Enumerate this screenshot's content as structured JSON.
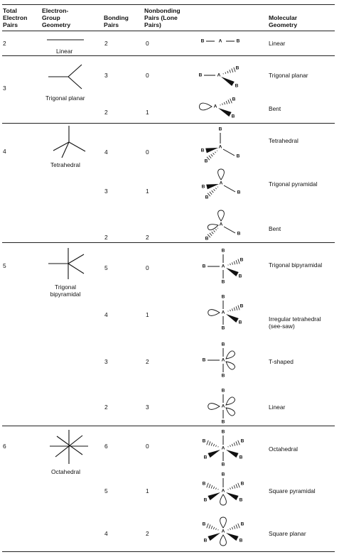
{
  "headers": {
    "total_pairs": "Total Electron Pairs",
    "group_geometry": "Electron- Group Geometry",
    "bonding": "Bonding Pairs",
    "nonbonding": "Nonbonding Pairs (Lone Pairs)",
    "molecular": "Molecular Geometry"
  },
  "atoms": {
    "central": "A",
    "bonded": "B"
  },
  "groups": [
    {
      "total": "2",
      "geometry": "Linear",
      "rows": [
        {
          "bonding": "2",
          "lone": "0",
          "molecular": "Linear"
        }
      ]
    },
    {
      "total": "3",
      "geometry": "Trigonal planar",
      "rows": [
        {
          "bonding": "3",
          "lone": "0",
          "molecular": "Trigonal planar"
        },
        {
          "bonding": "2",
          "lone": "1",
          "molecular": "Bent"
        }
      ]
    },
    {
      "total": "4",
      "geometry": "Tetrahedral",
      "rows": [
        {
          "bonding": "4",
          "lone": "0",
          "molecular": "Tetrahedral"
        },
        {
          "bonding": "3",
          "lone": "1",
          "molecular": "Trigonal pyramidal"
        },
        {
          "bonding": "2",
          "lone": "2",
          "molecular": "Bent"
        }
      ]
    },
    {
      "total": "5",
      "geometry": "Trigonal bipyramidal",
      "rows": [
        {
          "bonding": "5",
          "lone": "0",
          "molecular": "Trigonal bipyramidal"
        },
        {
          "bonding": "4",
          "lone": "1",
          "molecular": "Irregular tetrahedral (see-saw)"
        },
        {
          "bonding": "3",
          "lone": "2",
          "molecular": "T-shaped"
        },
        {
          "bonding": "2",
          "lone": "3",
          "molecular": "Linear"
        }
      ]
    },
    {
      "total": "6",
      "geometry": "Octahedral",
      "rows": [
        {
          "bonding": "6",
          "lone": "0",
          "molecular": "Octahedral"
        },
        {
          "bonding": "5",
          "lone": "1",
          "molecular": "Square pyramidal"
        },
        {
          "bonding": "4",
          "lone": "2",
          "molecular": "Square planar"
        }
      ]
    }
  ]
}
